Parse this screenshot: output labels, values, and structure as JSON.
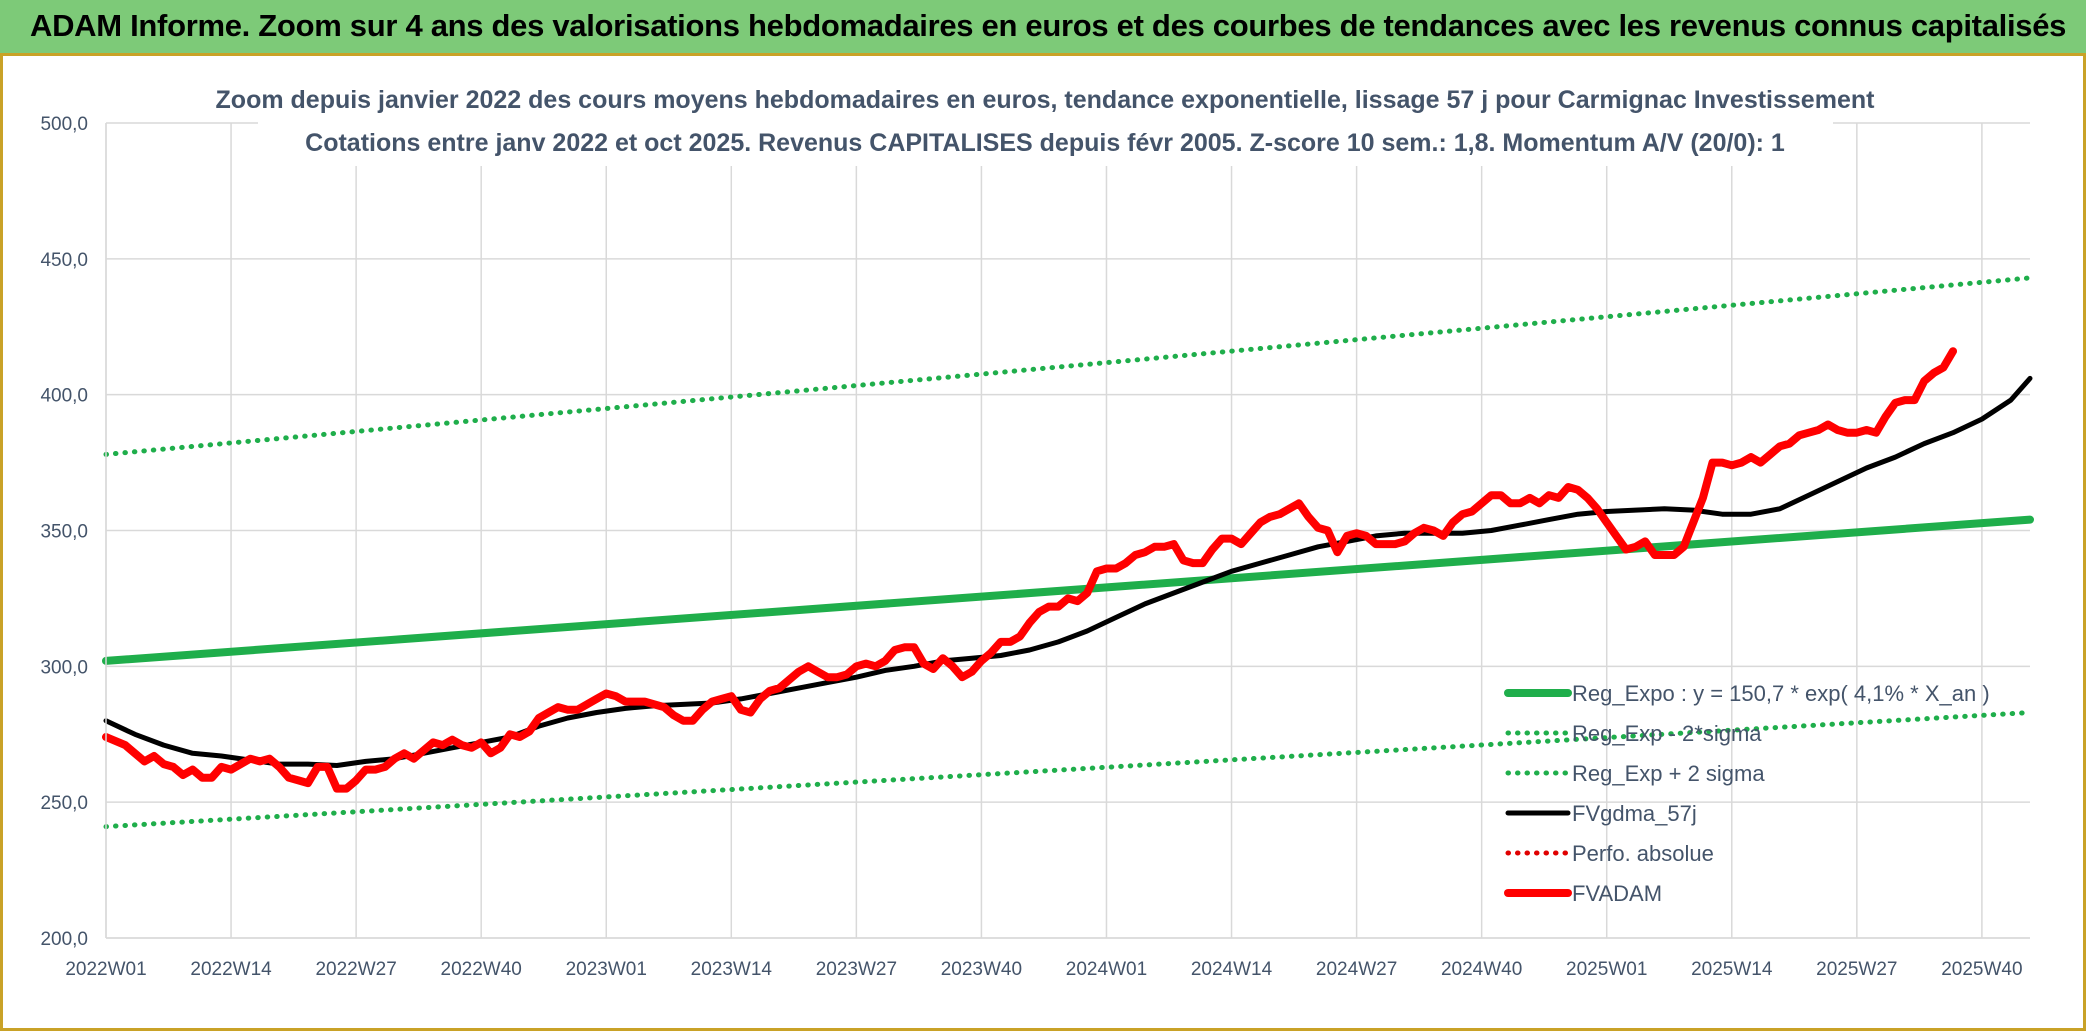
{
  "banner": {
    "title": "ADAM Informe. Zoom sur 4 ans des valorisations hebdomadaires en euros et des courbes de tendances avec les revenus connus capitalisés"
  },
  "colors": {
    "banner_bg": "#7dca78",
    "reg_expo": "#1fae4b",
    "reg_band": "#1fae4b",
    "fvgdma": "#000000",
    "perfo": "#e00000",
    "fvadam": "#ff0000",
    "grid": "#d9d9d9",
    "text": "#44546a"
  },
  "chart_data": {
    "type": "line",
    "title": "Zoom depuis janvier 2022 des cours moyens hebdomadaires en euros, tendance exponentielle, lissage 57 j pour Carmignac Investissement",
    "subtitle": "Cotations entre janv 2022 et oct 2025. Revenus CAPITALISES depuis févr 2005. Z-score 10 sem.: 1,8. Momentum A/V (20/0): 1",
    "ylim": [
      200,
      500
    ],
    "yticks": [
      "200,0",
      "250,0",
      "300,0",
      "350,0",
      "400,0",
      "450,0",
      "500,0"
    ],
    "ytick_values": [
      200,
      250,
      300,
      350,
      400,
      450,
      500
    ],
    "x_count": 196,
    "xticks": [
      {
        "label": "2022W01",
        "index": 0
      },
      {
        "label": "2022W14",
        "index": 13
      },
      {
        "label": "2022W27",
        "index": 26
      },
      {
        "label": "2022W40",
        "index": 39
      },
      {
        "label": "2023W01",
        "index": 52
      },
      {
        "label": "2023W14",
        "index": 65
      },
      {
        "label": "2023W27",
        "index": 78
      },
      {
        "label": "2023W40",
        "index": 91
      },
      {
        "label": "2024W01",
        "index": 104
      },
      {
        "label": "2024W14",
        "index": 117
      },
      {
        "label": "2024W27",
        "index": 130
      },
      {
        "label": "2024W40",
        "index": 143
      },
      {
        "label": "2025W01",
        "index": 156
      },
      {
        "label": "2025W14",
        "index": 169
      },
      {
        "label": "2025W27",
        "index": 182
      },
      {
        "label": "2025W40",
        "index": 195
      }
    ],
    "legend_position": "bottom-right",
    "series": [
      {
        "name": "Reg_Expo : y = 150,7 * exp( 4,1% *  X_an )",
        "style": "solid-thick",
        "color": "#1fae4b",
        "points": [
          [
            0,
            302
          ],
          [
            200,
            354
          ]
        ]
      },
      {
        "name": "Reg_Exp - 2*sigma",
        "style": "dotted",
        "color": "#1fae4b",
        "points": [
          [
            0,
            241
          ],
          [
            200,
            283
          ]
        ]
      },
      {
        "name": "Reg_Exp + 2 sigma",
        "style": "dotted",
        "color": "#1fae4b",
        "points": [
          [
            0,
            378
          ],
          [
            200,
            443
          ]
        ]
      },
      {
        "name": "FVgdma_57j",
        "style": "solid",
        "color": "#000000",
        "points": [
          [
            0,
            280
          ],
          [
            3,
            275
          ],
          [
            6,
            271
          ],
          [
            9,
            268
          ],
          [
            12,
            267
          ],
          [
            15,
            265.5
          ],
          [
            18,
            264
          ],
          [
            21,
            264
          ],
          [
            24,
            263.5
          ],
          [
            27,
            265
          ],
          [
            30,
            266
          ],
          [
            33,
            268
          ],
          [
            36,
            270
          ],
          [
            39,
            272
          ],
          [
            42,
            274
          ],
          [
            45,
            278
          ],
          [
            48,
            281
          ],
          [
            51,
            283
          ],
          [
            54,
            284.5
          ],
          [
            57,
            285.5
          ],
          [
            60,
            286
          ],
          [
            63,
            286.5
          ],
          [
            66,
            288
          ],
          [
            69,
            290
          ],
          [
            72,
            292
          ],
          [
            75,
            294
          ],
          [
            78,
            296
          ],
          [
            81,
            298.5
          ],
          [
            84,
            300
          ],
          [
            87,
            302
          ],
          [
            90,
            303
          ],
          [
            93,
            304
          ],
          [
            96,
            306
          ],
          [
            99,
            309
          ],
          [
            102,
            313
          ],
          [
            105,
            318
          ],
          [
            108,
            323
          ],
          [
            111,
            327
          ],
          [
            114,
            331
          ],
          [
            117,
            335
          ],
          [
            120,
            338
          ],
          [
            123,
            341
          ],
          [
            126,
            344
          ],
          [
            129,
            346
          ],
          [
            132,
            348
          ],
          [
            135,
            349
          ],
          [
            138,
            349
          ],
          [
            141,
            349
          ],
          [
            144,
            350
          ],
          [
            147,
            352
          ],
          [
            150,
            354
          ],
          [
            153,
            356
          ],
          [
            156,
            357
          ],
          [
            159,
            357.5
          ],
          [
            162,
            358
          ],
          [
            165,
            357.5
          ],
          [
            168,
            356
          ],
          [
            171,
            356
          ],
          [
            174,
            358
          ],
          [
            177,
            363
          ],
          [
            180,
            368
          ],
          [
            183,
            373
          ],
          [
            186,
            377
          ],
          [
            189,
            382
          ],
          [
            192,
            386
          ],
          [
            195,
            391
          ],
          [
            198,
            398
          ],
          [
            200,
            406
          ]
        ]
      },
      {
        "name": "Perfo. absolue",
        "style": "dotted",
        "color": "#e00000",
        "points": []
      },
      {
        "name": "FVADAM",
        "style": "solid-thick",
        "color": "#ff0000",
        "points": [
          [
            0,
            274
          ],
          [
            2,
            271
          ],
          [
            3,
            268
          ],
          [
            4,
            265
          ],
          [
            5,
            267
          ],
          [
            6,
            264
          ],
          [
            7,
            263
          ],
          [
            8,
            260
          ],
          [
            9,
            262
          ],
          [
            10,
            259
          ],
          [
            11,
            259
          ],
          [
            12,
            263
          ],
          [
            13,
            262
          ],
          [
            14,
            264
          ],
          [
            15,
            266
          ],
          [
            16,
            265
          ],
          [
            17,
            266
          ],
          [
            18,
            263
          ],
          [
            19,
            259
          ],
          [
            20,
            258
          ],
          [
            21,
            257
          ],
          [
            22,
            263
          ],
          [
            23,
            263
          ],
          [
            24,
            255
          ],
          [
            25,
            255
          ],
          [
            26,
            258
          ],
          [
            27,
            262
          ],
          [
            28,
            262
          ],
          [
            29,
            263
          ],
          [
            30,
            266
          ],
          [
            31,
            268
          ],
          [
            32,
            266
          ],
          [
            33,
            269
          ],
          [
            34,
            272
          ],
          [
            35,
            271
          ],
          [
            36,
            273
          ],
          [
            37,
            271
          ],
          [
            38,
            270
          ],
          [
            39,
            272
          ],
          [
            40,
            268
          ],
          [
            41,
            270
          ],
          [
            42,
            275
          ],
          [
            43,
            274
          ],
          [
            44,
            276
          ],
          [
            45,
            281
          ],
          [
            46,
            283
          ],
          [
            47,
            285
          ],
          [
            48,
            284
          ],
          [
            49,
            284
          ],
          [
            50,
            286
          ],
          [
            51,
            288
          ],
          [
            52,
            290
          ],
          [
            53,
            289
          ],
          [
            54,
            287
          ],
          [
            55,
            287
          ],
          [
            56,
            287
          ],
          [
            57,
            286
          ],
          [
            58,
            285
          ],
          [
            59,
            282
          ],
          [
            60,
            280
          ],
          [
            61,
            280
          ],
          [
            62,
            284
          ],
          [
            63,
            287
          ],
          [
            64,
            288
          ],
          [
            65,
            289
          ],
          [
            66,
            284
          ],
          [
            67,
            283
          ],
          [
            68,
            288
          ],
          [
            69,
            291
          ],
          [
            70,
            292
          ],
          [
            71,
            295
          ],
          [
            72,
            298
          ],
          [
            73,
            300
          ],
          [
            74,
            298
          ],
          [
            75,
            296
          ],
          [
            76,
            296
          ],
          [
            77,
            297
          ],
          [
            78,
            300
          ],
          [
            79,
            301
          ],
          [
            80,
            300
          ],
          [
            81,
            302
          ],
          [
            82,
            306
          ],
          [
            83,
            307
          ],
          [
            84,
            307
          ],
          [
            85,
            301
          ],
          [
            86,
            299
          ],
          [
            87,
            303
          ],
          [
            88,
            300
          ],
          [
            89,
            296
          ],
          [
            90,
            298
          ],
          [
            91,
            302
          ],
          [
            92,
            305
          ],
          [
            93,
            309
          ],
          [
            94,
            309
          ],
          [
            95,
            311
          ],
          [
            96,
            316
          ],
          [
            97,
            320
          ],
          [
            98,
            322
          ],
          [
            99,
            322
          ],
          [
            100,
            325
          ],
          [
            101,
            324
          ],
          [
            102,
            327
          ],
          [
            103,
            335
          ],
          [
            104,
            336
          ],
          [
            105,
            336
          ],
          [
            106,
            338
          ],
          [
            107,
            341
          ],
          [
            108,
            342
          ],
          [
            109,
            344
          ],
          [
            110,
            344
          ],
          [
            111,
            345
          ],
          [
            112,
            339
          ],
          [
            113,
            338
          ],
          [
            114,
            338
          ],
          [
            115,
            343
          ],
          [
            116,
            347
          ],
          [
            117,
            347
          ],
          [
            118,
            345
          ],
          [
            119,
            349
          ],
          [
            120,
            353
          ],
          [
            121,
            355
          ],
          [
            122,
            356
          ],
          [
            123,
            358
          ],
          [
            124,
            360
          ],
          [
            125,
            355
          ],
          [
            126,
            351
          ],
          [
            127,
            350
          ],
          [
            128,
            342
          ],
          [
            129,
            348
          ],
          [
            130,
            349
          ],
          [
            131,
            348
          ],
          [
            132,
            345
          ],
          [
            133,
            345
          ],
          [
            134,
            345
          ],
          [
            135,
            346
          ],
          [
            136,
            349
          ],
          [
            137,
            351
          ],
          [
            138,
            350
          ],
          [
            139,
            348
          ],
          [
            140,
            353
          ],
          [
            141,
            356
          ],
          [
            142,
            357
          ],
          [
            143,
            360
          ],
          [
            144,
            363
          ],
          [
            145,
            363
          ],
          [
            146,
            360
          ],
          [
            147,
            360
          ],
          [
            148,
            362
          ],
          [
            149,
            360
          ],
          [
            150,
            363
          ],
          [
            151,
            362
          ],
          [
            152,
            366
          ],
          [
            153,
            365
          ],
          [
            154,
            362
          ],
          [
            155,
            358
          ],
          [
            156,
            353
          ],
          [
            157,
            348
          ],
          [
            158,
            343
          ],
          [
            159,
            344
          ],
          [
            160,
            346
          ],
          [
            161,
            341
          ],
          [
            162,
            341
          ],
          [
            163,
            341
          ],
          [
            164,
            344
          ],
          [
            165,
            353
          ],
          [
            166,
            362
          ],
          [
            167,
            375
          ],
          [
            168,
            375
          ],
          [
            169,
            374
          ],
          [
            170,
            375
          ],
          [
            171,
            377
          ],
          [
            172,
            375
          ],
          [
            173,
            378
          ],
          [
            174,
            381
          ],
          [
            175,
            382
          ],
          [
            176,
            385
          ],
          [
            177,
            386
          ],
          [
            178,
            387
          ],
          [
            179,
            389
          ],
          [
            180,
            387
          ],
          [
            181,
            386
          ],
          [
            182,
            386
          ],
          [
            183,
            387
          ],
          [
            184,
            386
          ],
          [
            185,
            392
          ],
          [
            186,
            397
          ],
          [
            187,
            398
          ],
          [
            188,
            398
          ],
          [
            189,
            405
          ],
          [
            190,
            408
          ],
          [
            191,
            410
          ],
          [
            192,
            416
          ]
        ]
      }
    ]
  }
}
